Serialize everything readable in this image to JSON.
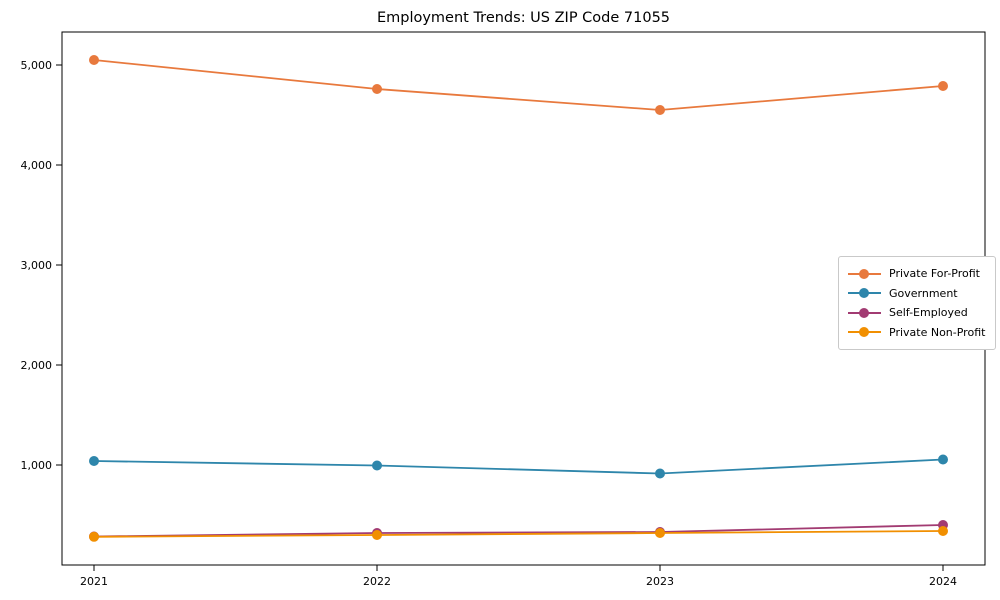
{
  "page": {
    "background": "#ffffff",
    "text_color": "#000000",
    "axis_color": "#000000",
    "legend_border_color": "#c9c9c9"
  },
  "chart_data": {
    "type": "line",
    "title": "Employment Trends: US ZIP Code 71055",
    "xlabel": "",
    "ylabel": "",
    "categories": [
      "2021",
      "2022",
      "2023",
      "2024"
    ],
    "series": [
      {
        "name": "Private For-Profit",
        "color": "#e8793d",
        "values": [
          5050,
          4760,
          4550,
          4790
        ]
      },
      {
        "name": "Government",
        "color": "#2e86ab",
        "values": [
          1040,
          995,
          915,
          1055
        ]
      },
      {
        "name": "Self-Employed",
        "color": "#a23b72",
        "values": [
          285,
          320,
          330,
          400
        ]
      },
      {
        "name": "Private Non-Profit",
        "color": "#f18f01",
        "values": [
          282,
          300,
          320,
          340
        ]
      }
    ],
    "ylim": [
      0,
      5330
    ],
    "yticks": [
      1000,
      2000,
      3000,
      4000,
      5000
    ],
    "ytick_labels": [
      "1,000",
      "2,000",
      "3,000",
      "4,000",
      "5,000"
    ],
    "grid": false,
    "legend_position": "center-right",
    "marker": "circle"
  }
}
